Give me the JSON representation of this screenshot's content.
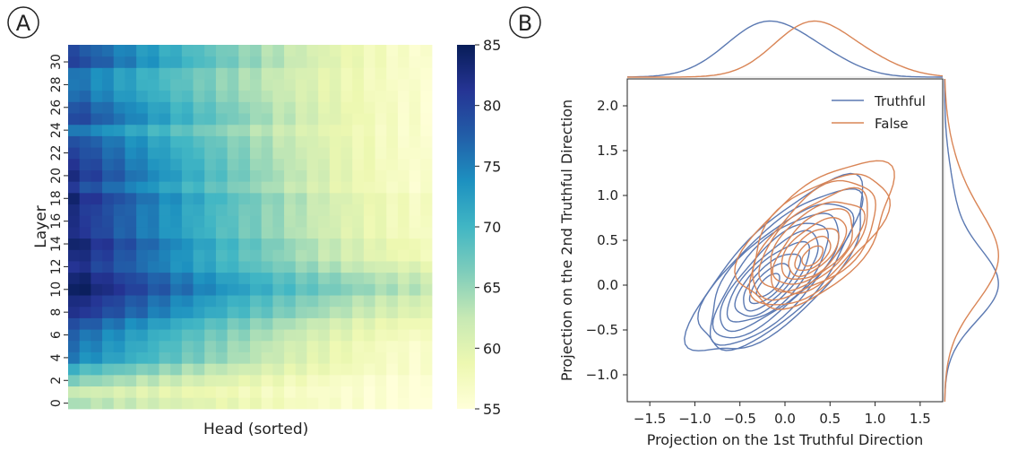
{
  "panel_labels": {
    "a": "A",
    "b": "B"
  },
  "chart_data": [
    {
      "type": "heatmap",
      "panel": "A",
      "title": "",
      "xlabel": "Head (sorted)",
      "ylabel": "Layer",
      "x_ticks": [],
      "y_ticks": [
        "0",
        "2",
        "4",
        "6",
        "8",
        "10",
        "12",
        "14",
        "16",
        "18",
        "20",
        "22",
        "24",
        "26",
        "28",
        "30"
      ],
      "rows": 32,
      "cols": 32,
      "colormap": "YlGnBu",
      "colorbar": {
        "min": 55,
        "max": 85,
        "ticks": [
          "55",
          "60",
          "65",
          "70",
          "75",
          "80",
          "85"
        ]
      },
      "row_peak_accuracy": [
        64,
        62,
        66,
        70,
        75,
        76,
        77,
        79,
        82,
        83,
        85,
        84,
        82,
        83,
        84,
        82,
        82,
        82,
        83,
        80,
        82,
        81,
        80,
        79,
        76,
        80,
        79,
        77,
        76,
        76,
        80,
        79
      ],
      "row_min_accuracy": [
        55,
        55,
        55,
        56,
        56,
        56,
        57,
        58,
        60,
        61,
        63,
        62,
        60,
        58,
        58,
        57,
        57,
        57,
        57,
        56,
        56,
        56,
        56,
        56,
        56,
        56,
        56,
        56,
        56,
        56,
        56,
        56
      ]
    },
    {
      "type": "contour",
      "panel": "B",
      "title": "",
      "xlabel": "Projection on the 1st Truthful Direction",
      "ylabel": "Projection on the 2nd Truthful Direction",
      "xlim": [
        -1.75,
        1.75
      ],
      "ylim": [
        -1.3,
        2.3
      ],
      "x_ticks": [
        "−1.5",
        "−1.0",
        "−0.5",
        "0.0",
        "0.5",
        "1.0",
        "1.5"
      ],
      "y_ticks": [
        "−1.0",
        "−0.5",
        "0.0",
        "0.5",
        "1.0",
        "1.5",
        "2.0"
      ],
      "legend_position": "top-right",
      "series": [
        {
          "name": "Truthful",
          "color": "#5b79b2",
          "center": [
            -0.2,
            -0.02
          ],
          "extent_x": [
            -1.05,
            0.75
          ],
          "extent_y": [
            -0.6,
            1.6
          ],
          "levels": 10
        },
        {
          "name": "False",
          "color": "#d98556",
          "center": [
            0.3,
            0.3
          ],
          "extent_x": [
            -0.45,
            1.25
          ],
          "extent_y": [
            -0.45,
            1.55
          ],
          "levels": 10
        }
      ],
      "marginal_x_peaks": {
        "Truthful": -0.2,
        "False": 0.3
      },
      "marginal_y_peaks": {
        "Truthful": 0.0,
        "False": 0.3
      }
    }
  ]
}
